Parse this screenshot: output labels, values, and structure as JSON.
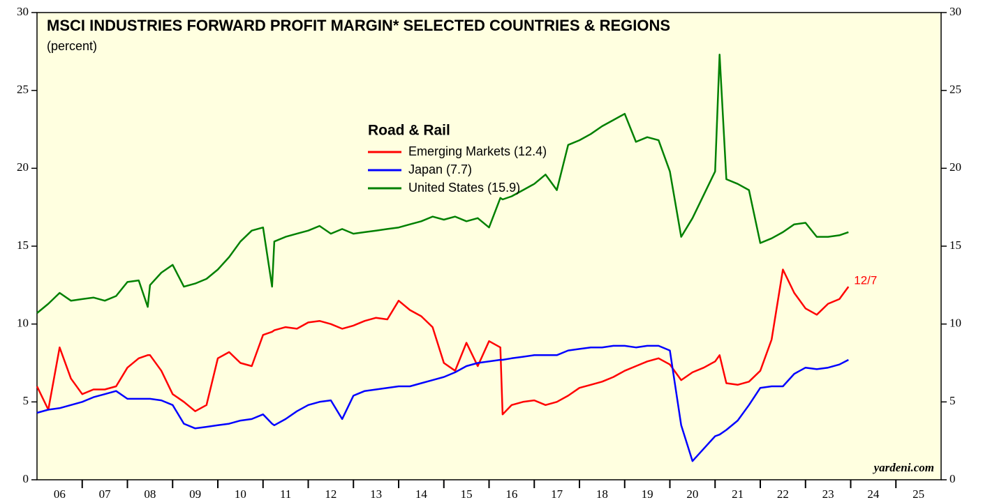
{
  "chart_data": {
    "type": "line",
    "title": "MSCI INDUSTRIES FORWARD PROFIT MARGIN* SELECTED COUNTRIES & REGIONS",
    "subtitle": "(percent)",
    "legend_title": "Road & Rail",
    "annotation": "12/7",
    "source": "yardeni.com",
    "xlim": [
      2006,
      2026
    ],
    "xticks": [
      {
        "value": 2006.5,
        "label": "06"
      },
      {
        "value": 2007.5,
        "label": "07"
      },
      {
        "value": 2008.5,
        "label": "08"
      },
      {
        "value": 2009.5,
        "label": "09"
      },
      {
        "value": 2010.5,
        "label": "10"
      },
      {
        "value": 2011.5,
        "label": "11"
      },
      {
        "value": 2012.5,
        "label": "12"
      },
      {
        "value": 2013.5,
        "label": "13"
      },
      {
        "value": 2014.5,
        "label": "14"
      },
      {
        "value": 2015.5,
        "label": "15"
      },
      {
        "value": 2016.5,
        "label": "16"
      },
      {
        "value": 2017.5,
        "label": "17"
      },
      {
        "value": 2018.5,
        "label": "18"
      },
      {
        "value": 2019.5,
        "label": "19"
      },
      {
        "value": 2020.5,
        "label": "20"
      },
      {
        "value": 2021.5,
        "label": "21"
      },
      {
        "value": 2022.5,
        "label": "22"
      },
      {
        "value": 2023.5,
        "label": "23"
      },
      {
        "value": 2024.5,
        "label": "24"
      },
      {
        "value": 2025.5,
        "label": "25"
      }
    ],
    "ylim": [
      0,
      30
    ],
    "yticks": [
      0,
      5,
      10,
      15,
      20,
      25,
      30
    ],
    "y2lim": [
      0,
      30
    ],
    "y2ticks": [
      0,
      5,
      10,
      15,
      20,
      25,
      30
    ],
    "x": [
      2006,
      2006.25,
      2006.5,
      2006.75,
      2007,
      2007.25,
      2007.5,
      2007.75,
      2008,
      2008.25,
      2008.45,
      2008.5,
      2008.75,
      2009,
      2009.25,
      2009.5,
      2009.75,
      2010,
      2010.25,
      2010.5,
      2010.75,
      2011,
      2011.2,
      2011.25,
      2011.5,
      2011.75,
      2012,
      2012.25,
      2012.5,
      2012.75,
      2013,
      2013.25,
      2013.5,
      2013.75,
      2014,
      2014.25,
      2014.5,
      2014.75,
      2015,
      2015.25,
      2015.5,
      2015.75,
      2016,
      2016.25,
      2016.3,
      2016.5,
      2016.75,
      2017,
      2017.25,
      2017.5,
      2017.75,
      2018,
      2018.25,
      2018.5,
      2018.75,
      2019,
      2019.25,
      2019.5,
      2019.75,
      2020,
      2020.25,
      2020.5,
      2020.75,
      2021,
      2021.1,
      2021.25,
      2021.5,
      2021.75,
      2022,
      2022.25,
      2022.5,
      2022.75,
      2023,
      2023.25,
      2023.5,
      2023.75,
      2023.95
    ],
    "series": [
      {
        "name": "Emerging Markets (12.4)",
        "color": "#ff0000",
        "values": [
          6.0,
          4.5,
          8.5,
          6.5,
          5.5,
          5.8,
          5.8,
          6.0,
          7.2,
          7.8,
          8.0,
          8.0,
          7.0,
          5.5,
          5.0,
          4.4,
          4.8,
          7.8,
          8.2,
          7.5,
          7.3,
          9.3,
          9.5,
          9.6,
          9.8,
          9.7,
          10.1,
          10.2,
          10.0,
          9.7,
          9.9,
          10.2,
          10.4,
          10.3,
          11.5,
          10.9,
          10.5,
          9.8,
          7.5,
          7.0,
          8.8,
          7.3,
          8.9,
          8.5,
          4.2,
          4.8,
          5.0,
          5.1,
          4.8,
          5.0,
          5.4,
          5.9,
          6.1,
          6.3,
          6.6,
          7.0,
          7.3,
          7.6,
          7.8,
          7.4,
          6.4,
          6.9,
          7.2,
          7.6,
          8.0,
          6.2,
          6.1,
          6.3,
          7.0,
          9.0,
          13.5,
          12.0,
          11.0,
          10.6,
          11.3,
          11.6,
          12.4
        ]
      },
      {
        "name": "Japan (7.7)",
        "color": "#0000ff",
        "values": [
          4.3,
          4.5,
          4.6,
          4.8,
          5.0,
          5.3,
          5.5,
          5.7,
          5.2,
          5.2,
          5.2,
          5.2,
          5.1,
          4.8,
          3.6,
          3.3,
          3.4,
          3.5,
          3.6,
          3.8,
          3.9,
          4.2,
          3.6,
          3.5,
          3.9,
          4.4,
          4.8,
          5.0,
          5.1,
          3.9,
          5.4,
          5.7,
          5.8,
          5.9,
          6.0,
          6.0,
          6.2,
          6.4,
          6.6,
          6.9,
          7.3,
          7.5,
          7.6,
          7.7,
          7.7,
          7.8,
          7.9,
          8.0,
          8.0,
          8.0,
          8.3,
          8.4,
          8.5,
          8.5,
          8.6,
          8.6,
          8.5,
          8.6,
          8.6,
          8.3,
          3.5,
          1.2,
          2.0,
          2.8,
          2.9,
          3.2,
          3.8,
          4.8,
          5.9,
          6.0,
          6.0,
          6.8,
          7.2,
          7.1,
          7.2,
          7.4,
          7.7
        ]
      },
      {
        "name": "United States (15.9)",
        "color": "#008000",
        "values": [
          10.7,
          11.3,
          12.0,
          11.5,
          11.6,
          11.7,
          11.5,
          11.8,
          12.7,
          12.8,
          11.1,
          12.5,
          13.3,
          13.8,
          12.4,
          12.6,
          12.9,
          13.5,
          14.3,
          15.3,
          16.0,
          16.2,
          12.4,
          15.3,
          15.6,
          15.8,
          16.0,
          16.3,
          15.8,
          16.1,
          15.8,
          15.9,
          16.0,
          16.1,
          16.2,
          16.4,
          16.6,
          16.9,
          16.7,
          16.9,
          16.6,
          16.8,
          16.2,
          18.1,
          18.0,
          18.2,
          18.6,
          19.0,
          19.6,
          18.6,
          21.5,
          21.8,
          22.2,
          22.7,
          23.1,
          23.5,
          21.7,
          22.0,
          21.8,
          19.8,
          15.6,
          16.8,
          18.3,
          19.8,
          27.3,
          19.3,
          19.0,
          18.6,
          15.2,
          15.5,
          15.9,
          16.4,
          16.5,
          15.6,
          15.6,
          15.7,
          15.9
        ]
      }
    ]
  }
}
